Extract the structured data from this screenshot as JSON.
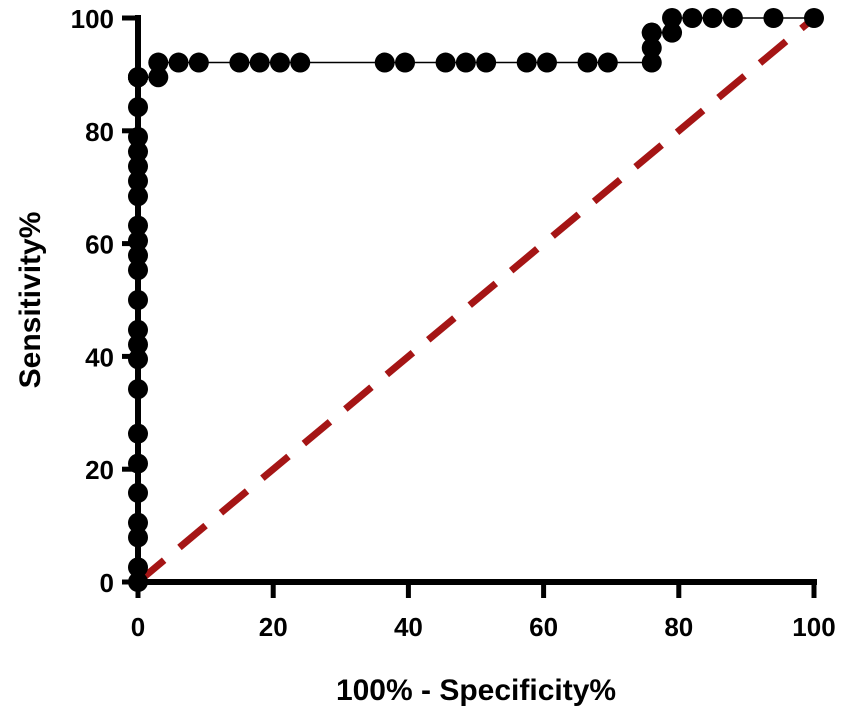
{
  "chart_data": {
    "type": "scatter",
    "title": "",
    "xlabel": "100% - Specificity%",
    "ylabel": "Sensitivity%",
    "xlim": [
      0,
      100
    ],
    "ylim": [
      0,
      100
    ],
    "xticks": [
      0,
      20,
      40,
      60,
      80,
      100
    ],
    "yticks": [
      0,
      20,
      40,
      60,
      80,
      100
    ],
    "grid": false,
    "legend": "none",
    "series": [
      {
        "mode": "line+markers",
        "color": "#000000",
        "x": [
          0,
          0,
          0,
          0,
          0,
          0,
          0,
          0,
          0,
          0,
          0,
          0,
          0,
          0,
          0,
          0,
          0,
          0,
          0,
          0,
          0,
          0,
          0,
          0,
          0,
          0,
          0,
          0,
          0,
          0,
          3,
          3,
          6,
          9,
          15,
          18,
          21,
          24,
          36.5,
          39.5,
          45.5,
          48.5,
          51.5,
          57.5,
          60.5,
          66.5,
          69.5,
          76,
          76,
          76,
          76,
          79,
          79,
          82,
          85,
          88,
          94,
          100
        ],
        "y": [
          0,
          2.6,
          7.9,
          10.5,
          15.8,
          21,
          26.3,
          34.2,
          39.5,
          42.1,
          44.7,
          50,
          55.3,
          57.9,
          60.5,
          63.2,
          68.4,
          71.1,
          73.7,
          76.3,
          78.9,
          84.2,
          89.5,
          89.5,
          89.5,
          89.5,
          89.5,
          89.5,
          89.5,
          89.5,
          89.5,
          92.1,
          92.1,
          92.1,
          92.1,
          92.1,
          92.1,
          92.1,
          92.1,
          92.1,
          92.1,
          92.1,
          92.1,
          92.1,
          92.1,
          92.1,
          92.1,
          92.1,
          94.7,
          97.4,
          97.4,
          97.4,
          100,
          100,
          100,
          100,
          100,
          100
        ]
      },
      {
        "mode": "dashed-line",
        "color": "#a51515",
        "x": [
          0,
          100
        ],
        "y": [
          0,
          100
        ]
      }
    ]
  }
}
